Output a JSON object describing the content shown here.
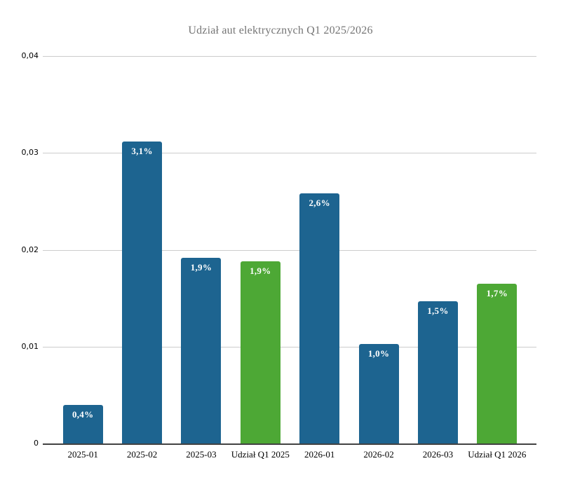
{
  "chart_data": {
    "type": "bar",
    "title": "Udział aut elektrycznych Q1 2025/2026",
    "categories": [
      "2025-01",
      "2025-02",
      "2025-03",
      "Udział Q1 2025",
      "2026-01",
      "2026-02",
      "2026-03",
      "Udział Q1 2026"
    ],
    "values": [
      0.004,
      0.0312,
      0.0192,
      0.0188,
      0.0258,
      0.0103,
      0.0147,
      0.0165
    ],
    "display_labels": [
      "0,4%",
      "3,1%",
      "1,9%",
      "1,9%",
      "2,6%",
      "1,0%",
      "1,5%",
      "1,7%"
    ],
    "bar_color_roles": [
      "month",
      "month",
      "month",
      "aggregate",
      "month",
      "month",
      "month",
      "aggregate"
    ],
    "xlabel": "",
    "ylabel": "",
    "ylim": [
      0,
      0.04
    ],
    "yticks": [
      {
        "label": "0,04",
        "value": 0.04
      },
      {
        "label": "0,03",
        "value": 0.03
      },
      {
        "label": "0,02",
        "value": 0.02
      },
      {
        "label": "0,01",
        "value": 0.01
      },
      {
        "label": "0",
        "value": 0
      }
    ],
    "grid": true,
    "legend": false
  },
  "colors": {
    "month_bar": "#1d6490",
    "aggregate_bar": "#4da835",
    "title_text": "#757575",
    "grid_line": "#cccccc",
    "axis_line": "#424242",
    "bar_label_text": "#ffffff",
    "tick_label_text": "#000000"
  }
}
